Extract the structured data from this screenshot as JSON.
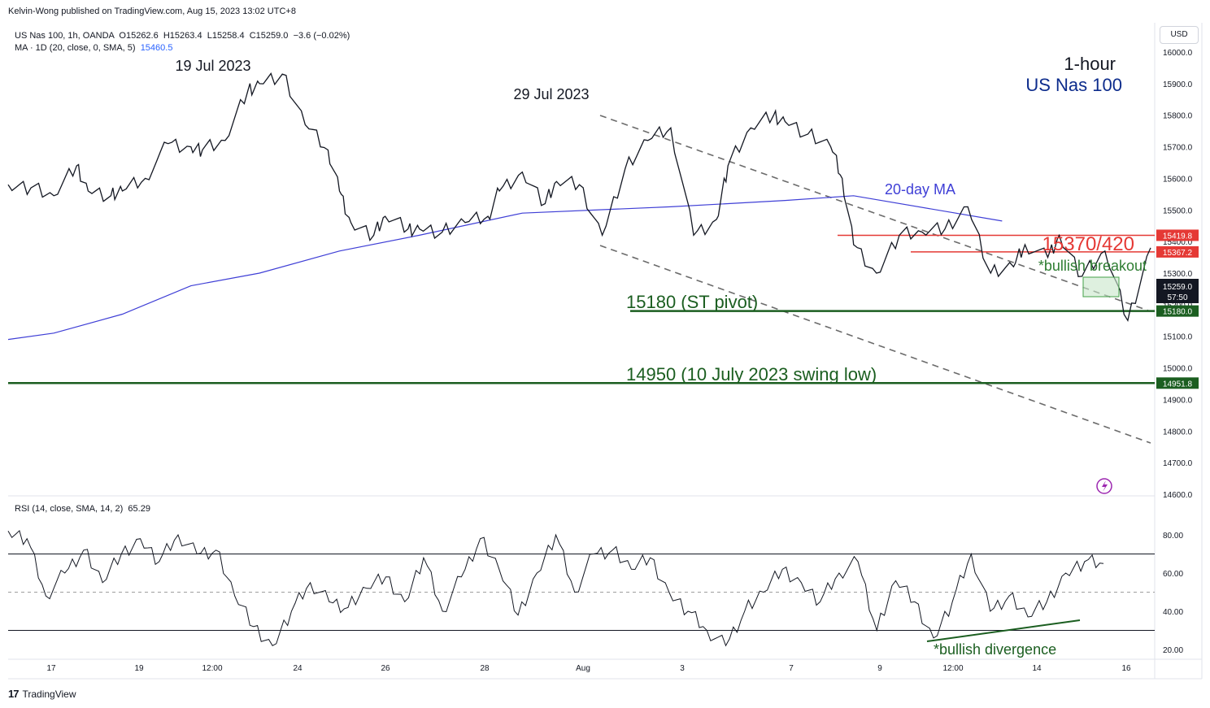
{
  "header": {
    "published": "Kelvin-Wong published on TradingView.com, Aug 15, 2023 13:02 UTC+8",
    "symbol_line": "US Nas 100, 1h, OANDA",
    "ohlc": {
      "o": "O15262.6",
      "h": "H15263.4",
      "l": "L15258.4",
      "c": "C15259.0",
      "chg": "−3.6 (−0.02%)"
    },
    "ma_label": "MA · 1D (20, close, 0, SMA, 5)",
    "ma_value": "15460.5",
    "rsi_label": "RSI (14, close, SMA, 14, 2)",
    "rsi_value": "65.29",
    "currency": "USD"
  },
  "footer": {
    "brand": "TradingView"
  },
  "colors": {
    "green": "#1b5e20",
    "red": "#e53935",
    "ma": "#3f3fd6",
    "navy": "#0d2c8c",
    "text": "#131722"
  },
  "chart_data": {
    "type": "line",
    "title": "1-hour",
    "subtitle": "US Nas 100",
    "price_axis": {
      "ticks": [
        16000.0,
        15900.0,
        15800.0,
        15700.0,
        15600.0,
        15500.0,
        15400.0,
        15300.0,
        15200.0,
        15100.0,
        15000.0,
        14900.0,
        14800.0,
        14700.0,
        14600.0
      ],
      "range": [
        14600,
        16020
      ]
    },
    "rsi_axis": {
      "ticks": [
        80.0,
        60.0,
        40.0,
        20.0
      ],
      "range": [
        15,
        87
      ],
      "bands": [
        70,
        50,
        30
      ]
    },
    "x_ticks": [
      "17",
      "19",
      "12:00",
      "24",
      "26",
      "28",
      "Aug",
      "3",
      "7",
      "9",
      "12:00",
      "14",
      "16"
    ],
    "price_series": {
      "name": "US Nas 100",
      "x": [
        0,
        2,
        4,
        6,
        7,
        9,
        10,
        12,
        14,
        16,
        17,
        19,
        21,
        22,
        24,
        26,
        28,
        29,
        30,
        32,
        33,
        35,
        36,
        38,
        40,
        42,
        43,
        45,
        47,
        48,
        50,
        52,
        54,
        56,
        58,
        60,
        62,
        63,
        65,
        67,
        68,
        70,
        72,
        73,
        74,
        76,
        78,
        80,
        82,
        84,
        86,
        88,
        89,
        91,
        92,
        94,
        96,
        98,
        100
      ],
      "values": [
        15580,
        15570,
        15545,
        15640,
        15560,
        15545,
        15560,
        15600,
        15710,
        15700,
        15690,
        15720,
        15880,
        15900,
        15930,
        15770,
        15690,
        15560,
        15460,
        15420,
        15480,
        15440,
        15440,
        15430,
        15460,
        15480,
        15560,
        15620,
        15520,
        15590,
        15580,
        15420,
        15630,
        15720,
        15760,
        15420,
        15470,
        15640,
        15760,
        15800,
        15780,
        15740,
        15700,
        15600,
        15390,
        15300,
        15420,
        15430,
        15440,
        15510,
        15300,
        15320,
        15390,
        15350,
        15420,
        15290,
        15370,
        15150,
        15380
      ]
    },
    "x_values_note_en": "x values are in hours (days x 24) from the start of the visible window (approximately Jul 14 2023 20:00 in the published time zone, UTC+8)",
    "ma_series": {
      "name": "20-day MA",
      "points": [
        [
          15090,
          0
        ],
        [
          15110,
          4
        ],
        [
          15170,
          10
        ],
        [
          15260,
          16
        ],
        [
          15300,
          22
        ],
        [
          15370,
          29
        ],
        [
          15420,
          36
        ],
        [
          15490,
          45
        ],
        [
          15510,
          58
        ],
        [
          15530,
          68
        ],
        [
          15545,
          74
        ],
        [
          15465,
          87
        ]
      ]
    },
    "rsi_series": {
      "name": "RSI",
      "values": [
        82,
        78,
        48,
        60,
        72,
        55,
        70,
        78,
        66,
        80,
        70,
        72,
        48,
        32,
        22,
        40,
        55,
        45,
        42,
        52,
        58,
        45,
        68,
        40,
        58,
        78,
        62,
        38,
        60,
        80,
        50,
        70,
        72,
        62,
        68,
        50,
        40,
        30,
        22,
        40,
        50,
        62,
        55,
        45,
        60,
        66,
        30,
        56,
        45,
        26,
        45,
        70,
        40,
        48,
        37,
        45,
        60,
        66,
        65
      ]
    },
    "annotations": [
      {
        "text": "19 Jul 2023"
      },
      {
        "text": "29 Jul 2023"
      },
      {
        "text": "1-hour"
      },
      {
        "text": "US Nas 100"
      },
      {
        "text": "20-day MA"
      },
      {
        "text": "15370/420"
      },
      {
        "text": "*bullish breakout"
      },
      {
        "text": "15180 (ST pivot)"
      },
      {
        "text": "14950 (10 July 2023 swing low)"
      },
      {
        "text": "*bullish divergence"
      }
    ],
    "levels": [
      {
        "label": "15419.8",
        "value": 15419.8,
        "color": "red"
      },
      {
        "label": "15367.2",
        "value": 15367.2,
        "color": "red"
      },
      {
        "label": "15180.0",
        "value": 15180.0,
        "color": "green"
      },
      {
        "label": "14951.8",
        "value": 14951.8,
        "color": "green"
      }
    ],
    "last_price": {
      "label": "15259.0",
      "countdown": "57:50",
      "value": 15259.0
    },
    "channel": {
      "upper": [
        [
          15800,
          55
        ],
        [
          15170,
          100
        ]
      ],
      "lower": [
        [
          15400,
          55
        ],
        [
          14760,
          100
        ]
      ]
    }
  }
}
